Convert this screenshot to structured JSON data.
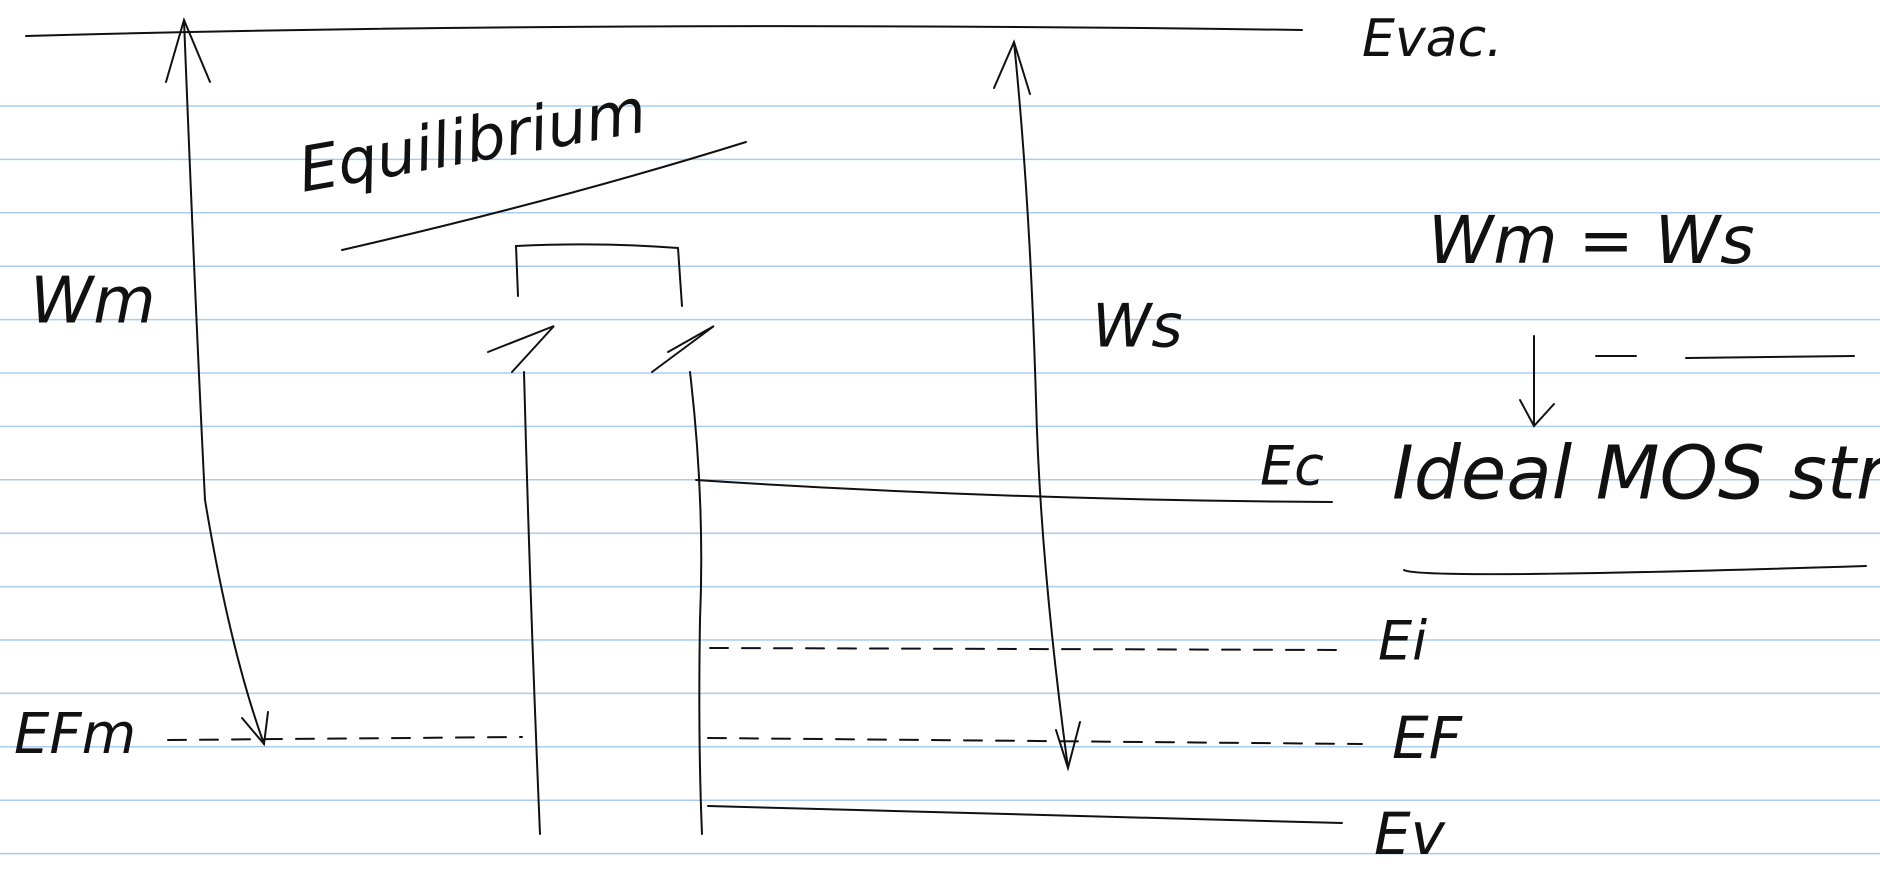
{
  "diagram": {
    "title": "Equilibrium",
    "vacuum_level": "Evac.",
    "metal_work_function": "Wm",
    "semiconductor_work_function": "Ws",
    "metal_fermi_level": "EFm",
    "conduction_band": "Ec",
    "intrinsic_level": "Ei",
    "fermi_level": "EF",
    "valence_band": "Ev",
    "condition": "Wm = Ws",
    "conclusion": "Ideal MOS str."
  }
}
